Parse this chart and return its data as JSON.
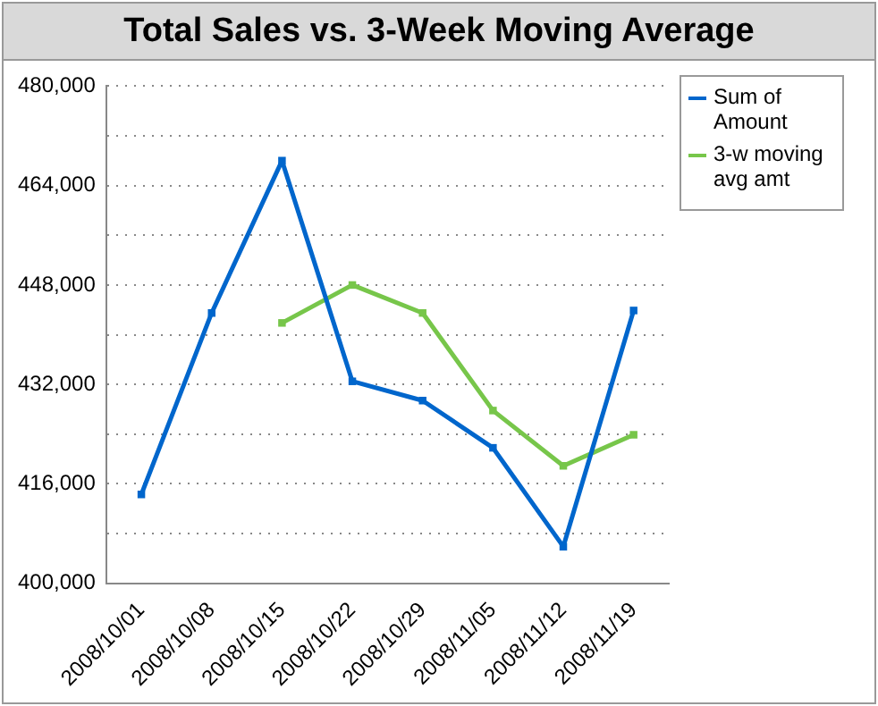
{
  "chart_data": {
    "type": "line",
    "title": "Total Sales vs. 3-Week Moving Average",
    "categories": [
      "2008/10/01",
      "2008/10/08",
      "2008/10/15",
      "2008/10/22",
      "2008/10/29",
      "2008/11/05",
      "2008/11/12",
      "2008/11/19"
    ],
    "series": [
      {
        "name": "Sum of Amount",
        "color": "#0066cc",
        "values": [
          414300,
          443500,
          468000,
          432500,
          429400,
          421800,
          405900,
          443900
        ]
      },
      {
        "name": "3-w moving avg amt",
        "color": "#77c64a",
        "values": [
          null,
          null,
          441900,
          448000,
          443500,
          427800,
          418900,
          423900
        ]
      }
    ],
    "ylim": [
      400000,
      480000
    ],
    "yticks": [
      {
        "value": 400000,
        "label": "400,000"
      },
      {
        "value": 408000,
        "label": null
      },
      {
        "value": 416000,
        "label": "416,000"
      },
      {
        "value": 424000,
        "label": null
      },
      {
        "value": 432000,
        "label": "432,000"
      },
      {
        "value": 440000,
        "label": null
      },
      {
        "value": 448000,
        "label": "448,000"
      },
      {
        "value": 456000,
        "label": null
      },
      {
        "value": 464000,
        "label": "464,000"
      },
      {
        "value": 472000,
        "label": null
      },
      {
        "value": 480000,
        "label": "480,000"
      }
    ],
    "grid": "y",
    "legend": "right",
    "marker": "square",
    "line_style": "solid"
  }
}
